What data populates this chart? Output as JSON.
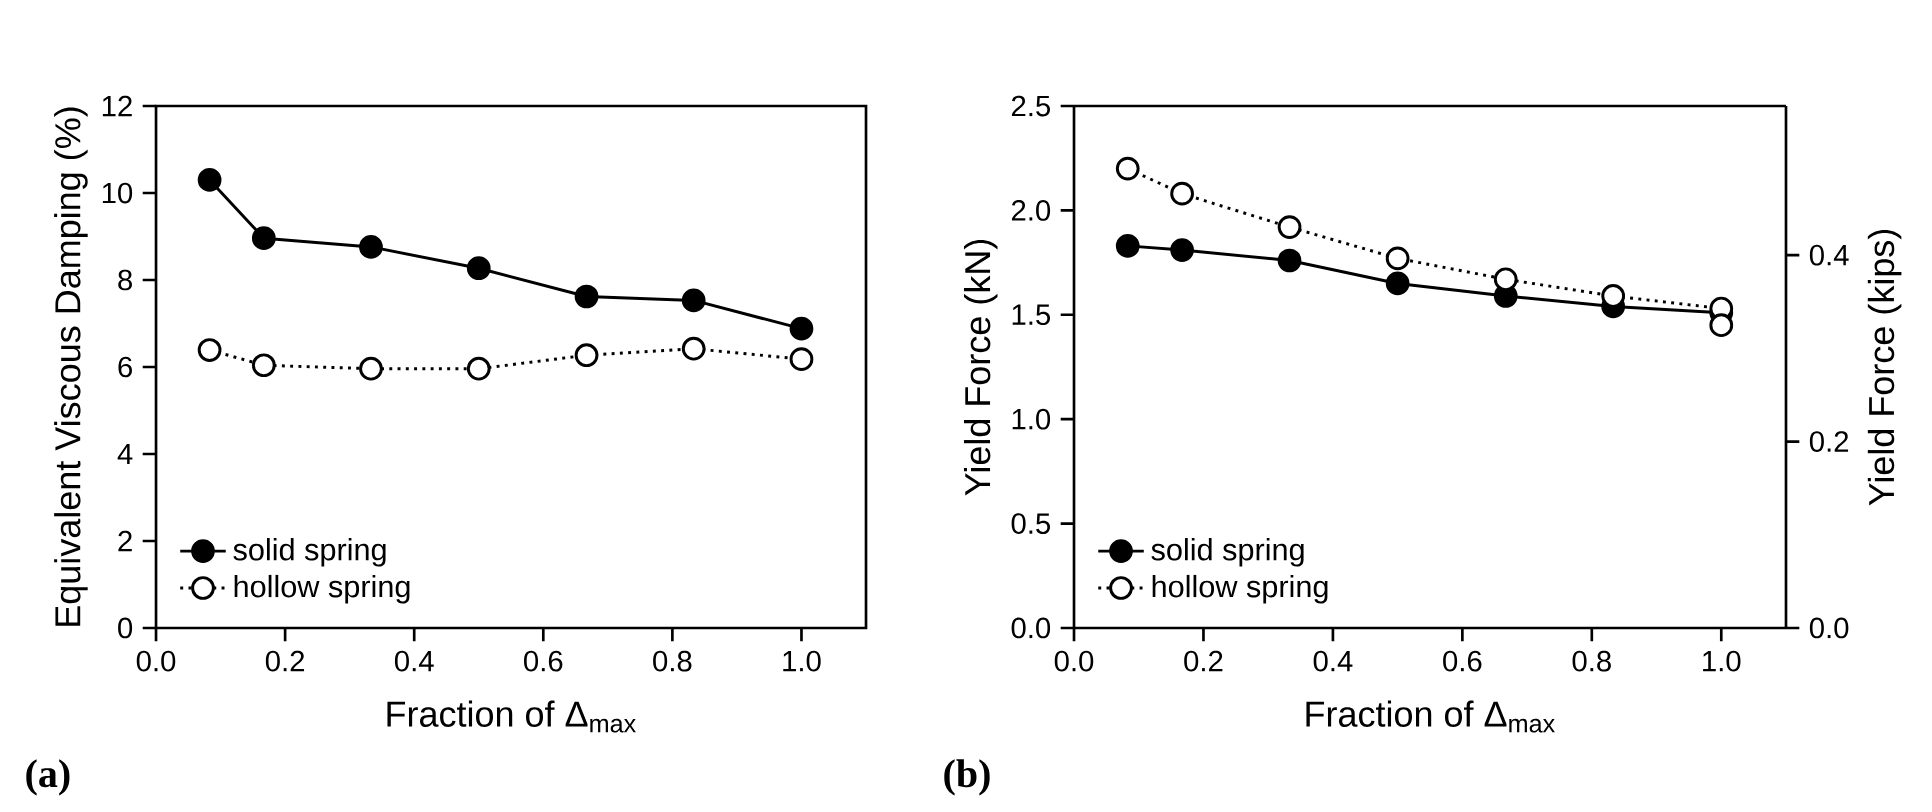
{
  "chart_data": [
    {
      "type": "line",
      "xlabel": "Fraction of Δ$_{max}$",
      "ylabel": "Equivalent Viscous Damping (%)",
      "annotations": [
        "(a)"
      ],
      "x": [
        0.083,
        0.167,
        0.333,
        0.5,
        0.667,
        0.833,
        1.0
      ],
      "series": [
        {
          "name": "solid spring",
          "color": "#000000",
          "line_style": "solid",
          "values": [
            10.3,
            8.96,
            8.76,
            8.27,
            7.62,
            7.53,
            6.88
          ]
        },
        {
          "name": "hollow spring",
          "color": "#000000",
          "line_style": "dotted",
          "x": [
            0.083,
            0.167,
            0.333,
            0.5,
            0.667,
            0.833,
            1.0
          ],
          "values": [
            6.39,
            6.04,
            5.96,
            5.96,
            6.27,
            6.42,
            6.18
          ]
        }
      ],
      "xlim": [
        0,
        1.1
      ],
      "ylim": [
        0,
        12
      ],
      "xticks": [
        {
          "value": 0,
          "label": "0.0"
        },
        {
          "value": 0.2,
          "label": "0.2"
        },
        {
          "value": 0.4,
          "label": "0.4"
        },
        {
          "value": 0.6,
          "label": "0.6"
        },
        {
          "value": 0.8,
          "label": "0.8"
        },
        {
          "value": 1.0,
          "label": "1.0"
        }
      ],
      "yticks": [
        0,
        2,
        4,
        6,
        8,
        10,
        12
      ],
      "marker": "circle",
      "legend": "bottom left"
    },
    {
      "type": "line",
      "xlabel": "Fraction of Δ$_{max}$",
      "ylabel": "Yield Force (kN)",
      "y2label": "Yield Force (kips)",
      "annotations": [
        "(b)"
      ],
      "x": [
        0.083,
        0.167,
        0.333,
        0.5,
        0.667,
        0.833,
        1.0
      ],
      "series": [
        {
          "name": "solid spring",
          "color": "#000000",
          "line_style": "solid",
          "values": [
            1.83,
            1.81,
            1.76,
            1.65,
            1.59,
            1.54,
            1.51
          ]
        },
        {
          "name": "hollow spring",
          "color": "#000000",
          "line_style": "dotted",
          "x": [
            0.083,
            0.167,
            0.333,
            0.5,
            0.667,
            0.833,
            1.0,
            1.0
          ],
          "values": [
            2.2,
            2.08,
            1.92,
            1.77,
            1.67,
            1.59,
            1.53,
            1.45
          ]
        }
      ],
      "xlim": [
        0,
        1.1
      ],
      "ylim": [
        0,
        2.5
      ],
      "y2lim": [
        0,
        0.56
      ],
      "xticks": [
        {
          "value": 0,
          "label": "0.0"
        },
        {
          "value": 0.2,
          "label": "0.2"
        },
        {
          "value": 0.4,
          "label": "0.4"
        },
        {
          "value": 0.6,
          "label": "0.6"
        },
        {
          "value": 0.8,
          "label": "0.8"
        },
        {
          "value": 1.0,
          "label": "1.0"
        }
      ],
      "yticks": [
        {
          "value": 0,
          "label": "0.0"
        },
        {
          "value": 0.5,
          "label": "0.5"
        },
        {
          "value": 1.0,
          "label": "1.0"
        },
        {
          "value": 1.5,
          "label": "1.5"
        },
        {
          "value": 2.0,
          "label": "2.0"
        },
        {
          "value": 2.5,
          "label": "2.5"
        }
      ],
      "y2ticks": [
        {
          "value": 0,
          "label": "0.0"
        },
        {
          "value": 0.2,
          "label": "0.2"
        },
        {
          "value": 0.4,
          "label": "0.4"
        }
      ],
      "marker": "circle",
      "legend": "bottom left"
    }
  ]
}
